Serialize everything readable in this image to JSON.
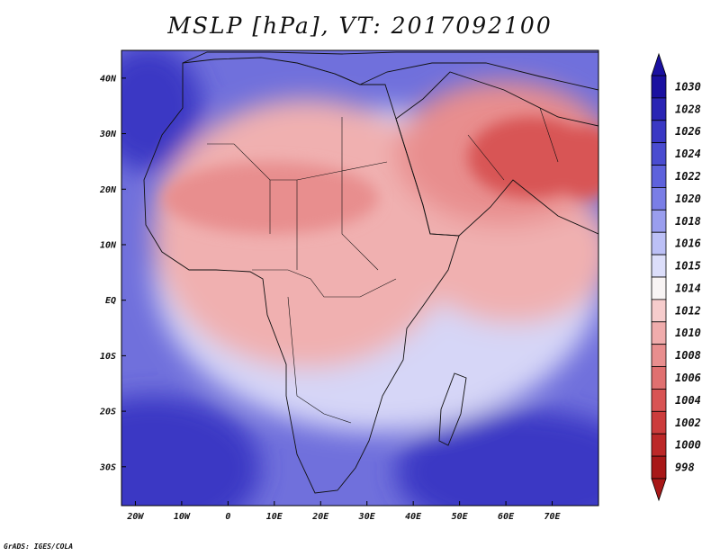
{
  "title": "MSLP [hPa], VT: 2017092100",
  "credit": "GrADS: IGES/COLA",
  "lat_ticks": [
    "40N",
    "30N",
    "20N",
    "10N",
    "EQ",
    "10S",
    "20S",
    "30S"
  ],
  "lon_ticks": [
    "20W",
    "10W",
    "0",
    "10E",
    "20E",
    "30E",
    "40E",
    "50E",
    "60E",
    "70E"
  ],
  "colorbar": {
    "levels": [
      "1030",
      "1028",
      "1026",
      "1024",
      "1022",
      "1020",
      "1018",
      "1016",
      "1015",
      "1014",
      "1012",
      "1010",
      "1008",
      "1006",
      "1004",
      "1002",
      "1000",
      "998"
    ],
    "colors": [
      "#1a10a0",
      "#2a24b4",
      "#3a38c4",
      "#4a4cd0",
      "#5e62dc",
      "#7a7ee6",
      "#9a9eee",
      "#bcc0f6",
      "#dcdefa",
      "#f8f4f4",
      "#f6cccc",
      "#f0acac",
      "#e88e8e",
      "#e07070",
      "#d85454",
      "#cc3c3c",
      "#bc2828",
      "#a81818"
    ]
  },
  "map": {
    "units": "hPa",
    "lon_range": [
      -23,
      80
    ],
    "lat_range": [
      -37,
      45
    ],
    "ocean_color": "#7070dc",
    "high_pressure_color": "#3a38c4",
    "low_pressure_color": "#d85454",
    "land_color": "#f0b0b0"
  }
}
